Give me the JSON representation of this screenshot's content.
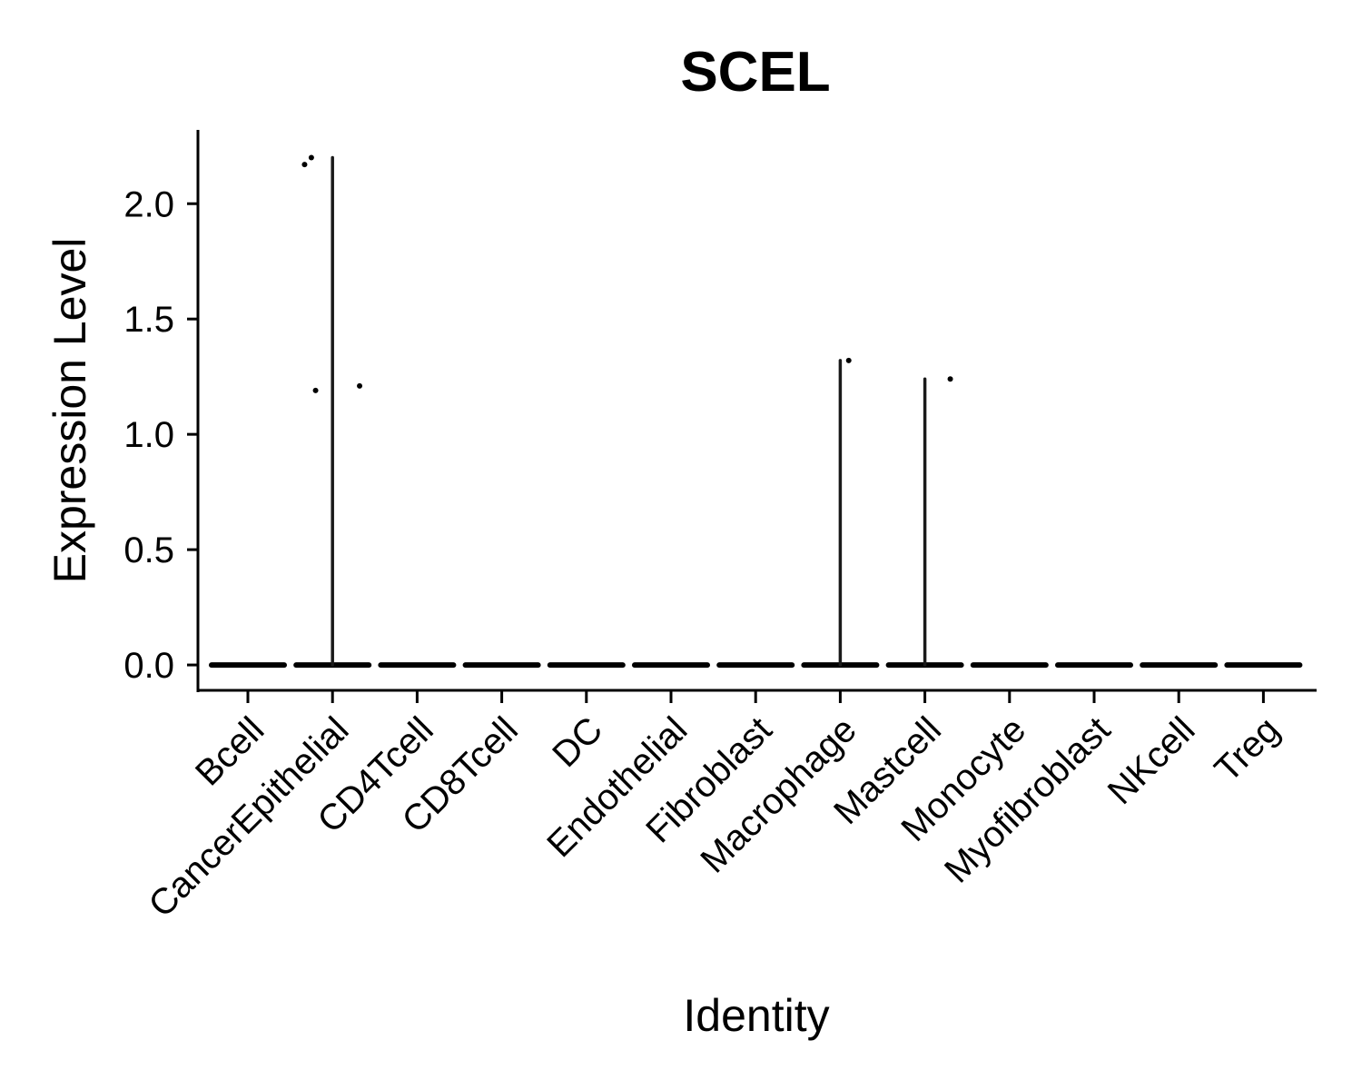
{
  "chart_data": {
    "type": "violin",
    "title": "SCEL",
    "xlabel": "Identity",
    "ylabel": "Expression Level",
    "ylim": [
      -0.11,
      2.32
    ],
    "yticks": [
      "0.0",
      "0.5",
      "1.0",
      "1.5",
      "2.0"
    ],
    "ytick_values": [
      0,
      0.5,
      1.0,
      1.5,
      2.0
    ],
    "grid": false,
    "legend": "none",
    "categories": [
      "Bcell",
      "CancerEpithelial",
      "CD4Tcell",
      "CD8Tcell",
      "DC",
      "Endothelial",
      "Fibroblast",
      "Macrophage",
      "Mastcell",
      "Monocyte",
      "Myofibroblast",
      "NKcell",
      "Treg"
    ],
    "max_values": [
      0,
      2.2,
      0,
      0,
      0,
      0,
      0,
      1.32,
      1.24,
      0,
      0,
      0,
      0
    ],
    "points": [
      {
        "category": "CancerEpithelial",
        "offset": -0.33,
        "y": 2.17
      },
      {
        "category": "CancerEpithelial",
        "offset": -0.25,
        "y": 2.2
      },
      {
        "category": "CancerEpithelial",
        "offset": -0.2,
        "y": 1.19
      },
      {
        "category": "CancerEpithelial",
        "offset": 0.32,
        "y": 1.21
      },
      {
        "category": "Macrophage",
        "offset": 0.1,
        "y": 1.32
      },
      {
        "category": "Mastcell",
        "offset": 0.3,
        "y": 1.24
      }
    ]
  }
}
